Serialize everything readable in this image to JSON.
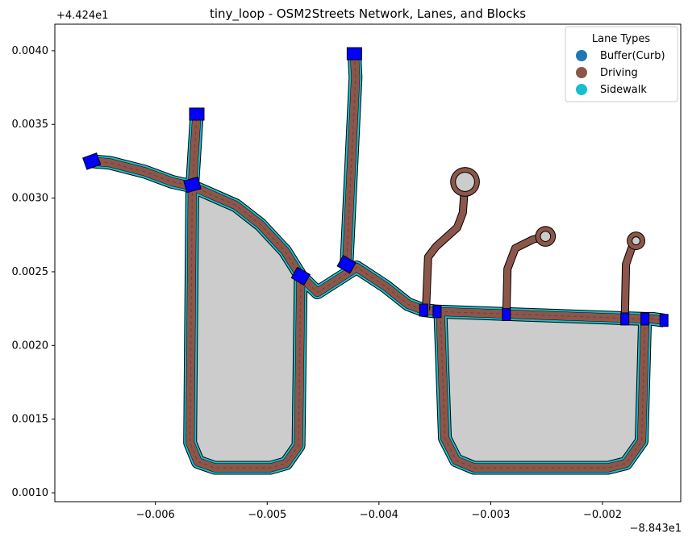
{
  "chart_data": {
    "type": "map",
    "title": "tiny_loop - OSM2Streets Network, Lanes, and Blocks",
    "xlabel": "",
    "ylabel": "",
    "x_offset_label": "−8.843e1",
    "y_offset_label": "+4.424e1",
    "xlim": [
      -0.0069,
      -0.0013
    ],
    "ylim": [
      0.00094,
      0.00418
    ],
    "x_ticks": [
      -0.006,
      -0.005,
      -0.004,
      -0.003,
      -0.002
    ],
    "x_tick_labels": [
      "−0.006",
      "−0.005",
      "−0.004",
      "−0.003",
      "−0.002"
    ],
    "y_ticks": [
      0.001,
      0.0015,
      0.002,
      0.0025,
      0.003,
      0.0035,
      0.004
    ],
    "y_tick_labels": [
      "0.0010",
      "0.0015",
      "0.0020",
      "0.0025",
      "0.0030",
      "0.0035",
      "0.0040"
    ],
    "grid": false,
    "legend": {
      "title": "Lane Types",
      "placement": "top-right",
      "entries": [
        {
          "label": "Buffer(Curb)",
          "color": "#1f77b4"
        },
        {
          "label": "Driving",
          "color": "#8c564b"
        },
        {
          "label": "Sidewalk",
          "color": "#17becf"
        }
      ]
    },
    "colors": {
      "block": "#cccccc",
      "driving": "#8c564b",
      "sidewalk": "#17becf",
      "intersection": "#0000ff",
      "outline": "#000000"
    },
    "blocks": [
      {
        "name": "block-left",
        "points": [
          [
            -0.00561,
            0.00308
          ],
          [
            -0.00528,
            0.00295
          ],
          [
            -0.00506,
            0.00282
          ],
          [
            -0.00484,
            0.00264
          ],
          [
            -0.0047,
            0.00247
          ],
          [
            -0.00472,
            0.00132
          ],
          [
            -0.00483,
            0.0012
          ],
          [
            -0.00497,
            0.00117
          ],
          [
            -0.00547,
            0.00117
          ],
          [
            -0.00562,
            0.00121
          ],
          [
            -0.00569,
            0.00134
          ],
          [
            -0.00567,
            0.00309
          ]
        ]
      },
      {
        "name": "block-right",
        "points": [
          [
            -0.00345,
            0.00219
          ],
          [
            -0.00162,
            0.00216
          ],
          [
            -0.00165,
            0.00135
          ],
          [
            -0.00179,
            0.0012
          ],
          [
            -0.00195,
            0.00117
          ],
          [
            -0.00315,
            0.00117
          ],
          [
            -0.00331,
            0.00122
          ],
          [
            -0.00341,
            0.00137
          ]
        ]
      }
    ],
    "roads": [
      {
        "name": "road-main",
        "points": [
          [
            -0.00657,
            0.00325
          ],
          [
            -0.00641,
            0.00324
          ],
          [
            -0.0061,
            0.00318
          ],
          [
            -0.00585,
            0.00311
          ],
          [
            -0.00567,
            0.00308
          ],
          [
            -0.00528,
            0.00295
          ],
          [
            -0.00506,
            0.00282
          ],
          [
            -0.00484,
            0.00264
          ],
          [
            -0.0047,
            0.00247
          ],
          [
            -0.00455,
            0.00236
          ],
          [
            -0.0042,
            0.00253
          ],
          [
            -0.00394,
            0.0024
          ],
          [
            -0.00374,
            0.00228
          ],
          [
            -0.0036,
            0.00224
          ],
          [
            -0.00348,
            0.00223
          ],
          [
            -0.00162,
            0.00218
          ],
          [
            -0.00155,
            0.00218
          ],
          [
            -0.00145,
            0.00217
          ]
        ]
      },
      {
        "name": "road-north-left",
        "points": [
          [
            -0.00567,
            0.00308
          ],
          [
            -0.00563,
            0.00357
          ]
        ]
      },
      {
        "name": "road-north-right",
        "points": [
          [
            -0.00429,
            0.00255
          ],
          [
            -0.00421,
            0.00382
          ],
          [
            -0.00422,
            0.00398
          ]
        ]
      },
      {
        "name": "road-loop-left",
        "points": [
          [
            -0.00567,
            0.00308
          ],
          [
            -0.00569,
            0.00134
          ],
          [
            -0.00562,
            0.00121
          ],
          [
            -0.00547,
            0.00117
          ],
          [
            -0.00497,
            0.00117
          ],
          [
            -0.00483,
            0.0012
          ],
          [
            -0.00472,
            0.00132
          ],
          [
            -0.0047,
            0.00247
          ]
        ]
      },
      {
        "name": "road-loop-right",
        "points": [
          [
            -0.00345,
            0.00221
          ],
          [
            -0.00341,
            0.00137
          ],
          [
            -0.00331,
            0.00122
          ],
          [
            -0.00315,
            0.00117
          ],
          [
            -0.00195,
            0.00117
          ],
          [
            -0.00179,
            0.0012
          ],
          [
            -0.00165,
            0.00135
          ],
          [
            -0.00162,
            0.00218
          ]
        ]
      }
    ],
    "driveways": [
      {
        "name": "driveway-1",
        "points": [
          [
            -0.00358,
            0.00224
          ],
          [
            -0.00356,
            0.0026
          ],
          [
            -0.00349,
            0.00267
          ],
          [
            -0.0033,
            0.0028
          ],
          [
            -0.00325,
            0.0029
          ],
          [
            -0.00323,
            0.00311
          ]
        ]
      },
      {
        "name": "driveway-2",
        "points": [
          [
            -0.00286,
            0.00221
          ],
          [
            -0.00285,
            0.00252
          ],
          [
            -0.00278,
            0.00266
          ],
          [
            -0.00262,
            0.00272
          ],
          [
            -0.00251,
            0.00274
          ]
        ]
      },
      {
        "name": "driveway-3",
        "points": [
          [
            -0.0018,
            0.00218
          ],
          [
            -0.00179,
            0.00255
          ],
          [
            -0.00174,
            0.00266
          ],
          [
            -0.0017,
            0.00271
          ]
        ]
      }
    ],
    "cul_de_sacs": [
      {
        "name": "cul-de-sac-1",
        "center": [
          -0.00323,
          0.00311
        ],
        "radius": 0.0001
      },
      {
        "name": "cul-de-sac-2",
        "center": [
          -0.00251,
          0.00274
        ],
        "radius": 6e-05
      },
      {
        "name": "cul-de-sac-3",
        "center": [
          -0.0017,
          0.00271
        ],
        "radius": 5e-05
      }
    ],
    "intersections": [
      {
        "name": "node-west",
        "center": [
          -0.00657,
          0.00325
        ],
        "angle": -20
      },
      {
        "name": "node-nw",
        "center": [
          -0.00567,
          0.00309
        ],
        "angle": -15
      },
      {
        "name": "node-north-left",
        "center": [
          -0.00563,
          0.00357
        ],
        "angle": 0
      },
      {
        "name": "node-mid",
        "center": [
          -0.0047,
          0.00247
        ],
        "angle": 30
      },
      {
        "name": "node-north-right",
        "center": [
          -0.00422,
          0.00398
        ],
        "angle": 0
      },
      {
        "name": "node-center",
        "center": [
          -0.00429,
          0.00255
        ],
        "angle": 30
      },
      {
        "name": "node-e1",
        "center": [
          -0.0036,
          0.00224
        ],
        "angle": 0
      },
      {
        "name": "node-e2",
        "center": [
          -0.00348,
          0.00223
        ],
        "angle": 0
      },
      {
        "name": "node-e3",
        "center": [
          -0.00286,
          0.00221
        ],
        "angle": 0
      },
      {
        "name": "node-e4",
        "center": [
          -0.0018,
          0.00218
        ],
        "angle": 0
      },
      {
        "name": "node-e5",
        "center": [
          -0.00162,
          0.00218
        ],
        "angle": 0
      },
      {
        "name": "node-east",
        "center": [
          -0.00145,
          0.00217
        ],
        "angle": 0
      }
    ]
  }
}
